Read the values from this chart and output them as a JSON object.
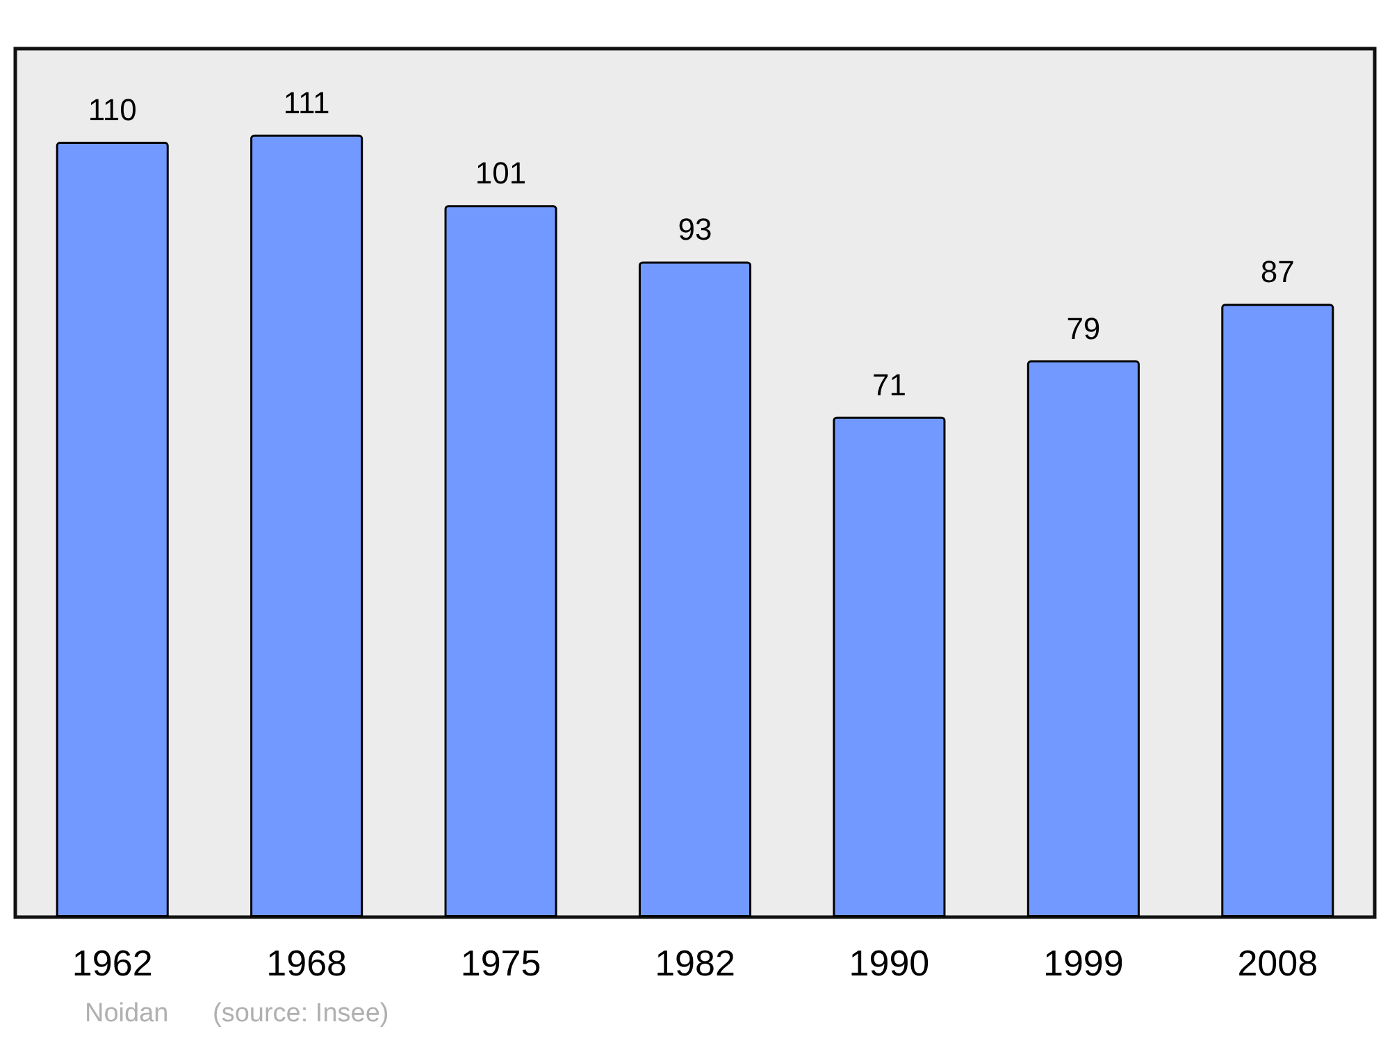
{
  "chart_data": {
    "type": "bar",
    "categories": [
      "1962",
      "1968",
      "1975",
      "1982",
      "1990",
      "1999",
      "2008"
    ],
    "values": [
      110,
      111,
      101,
      93,
      71,
      79,
      87
    ],
    "color": "#7299ff",
    "data_labels": true,
    "annotations": [
      "Noidan",
      "(source: Insee)"
    ]
  }
}
